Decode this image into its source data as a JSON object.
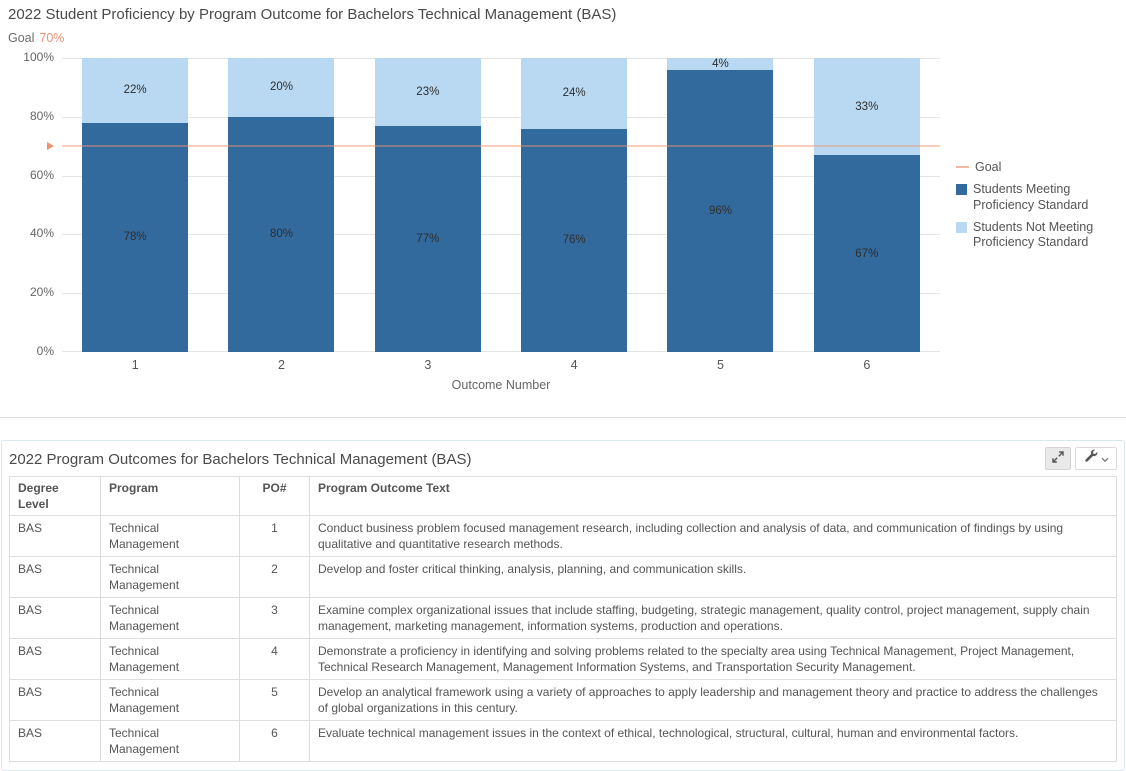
{
  "chart_data": {
    "type": "bar",
    "stacked": true,
    "title": "2022 Student Proficiency by Program Outcome for Bachelors Technical Management (BAS)",
    "categories": [
      "1",
      "2",
      "3",
      "4",
      "5",
      "6"
    ],
    "series": [
      {
        "name": "Students Meeting Proficiency Standard",
        "color": "#336a9d",
        "values": [
          78,
          80,
          77,
          76,
          96,
          67
        ]
      },
      {
        "name": "Students Not Meeting Proficiency Standard",
        "color": "#b9d9f2",
        "values": [
          22,
          20,
          23,
          24,
          4,
          33
        ]
      }
    ],
    "value_suffix": "%",
    "goal": {
      "label": "Goal",
      "value": 70,
      "display": "70%",
      "line_color": "#f0947a"
    },
    "xlabel": "Outcome Number",
    "ylabel": "",
    "ylim": [
      0,
      100
    ],
    "yticks": [
      "0%",
      "20%",
      "40%",
      "60%",
      "80%",
      "100%"
    ],
    "grid": true,
    "legend_position": "right"
  },
  "table_panel": {
    "title": "2022 Program Outcomes for Bachelors Technical Management (BAS)",
    "toolbar": {
      "expand_icon": "expand-icon",
      "tools_icon": "wrench-icon",
      "tools_caret": "chevron-down-icon"
    },
    "columns": [
      "Degree Level",
      "Program",
      "PO#",
      "Program Outcome Text"
    ],
    "rows": [
      {
        "degree_level": "BAS",
        "program": "Technical Management",
        "po": "1",
        "text": "Conduct business problem focused management research, including collection and analysis of data, and communication of findings by using qualitative and quantitative research methods."
      },
      {
        "degree_level": "BAS",
        "program": "Technical Management",
        "po": "2",
        "text": "Develop and foster critical thinking, analysis, planning, and communication skills."
      },
      {
        "degree_level": "BAS",
        "program": "Technical Management",
        "po": "3",
        "text": "Examine complex organizational issues that include staffing, budgeting, strategic management, quality control, project management, supply chain management, marketing management, information systems, production and operations."
      },
      {
        "degree_level": "BAS",
        "program": "Technical Management",
        "po": "4",
        "text": "Demonstrate a proficiency in identifying and solving problems related to the specialty area using Technical Management, Project Management, Technical Research Management, Management Information Systems, and Transportation Security Management."
      },
      {
        "degree_level": "BAS",
        "program": "Technical Management",
        "po": "5",
        "text": "Develop an analytical framework using a variety of approaches to apply leadership and management theory and practice to address the challenges of global organizations in this century."
      },
      {
        "degree_level": "BAS",
        "program": "Technical Management",
        "po": "6",
        "text": "Evaluate technical management issues in the context of ethical, technological, structural, cultural, human and environmental factors."
      }
    ]
  }
}
